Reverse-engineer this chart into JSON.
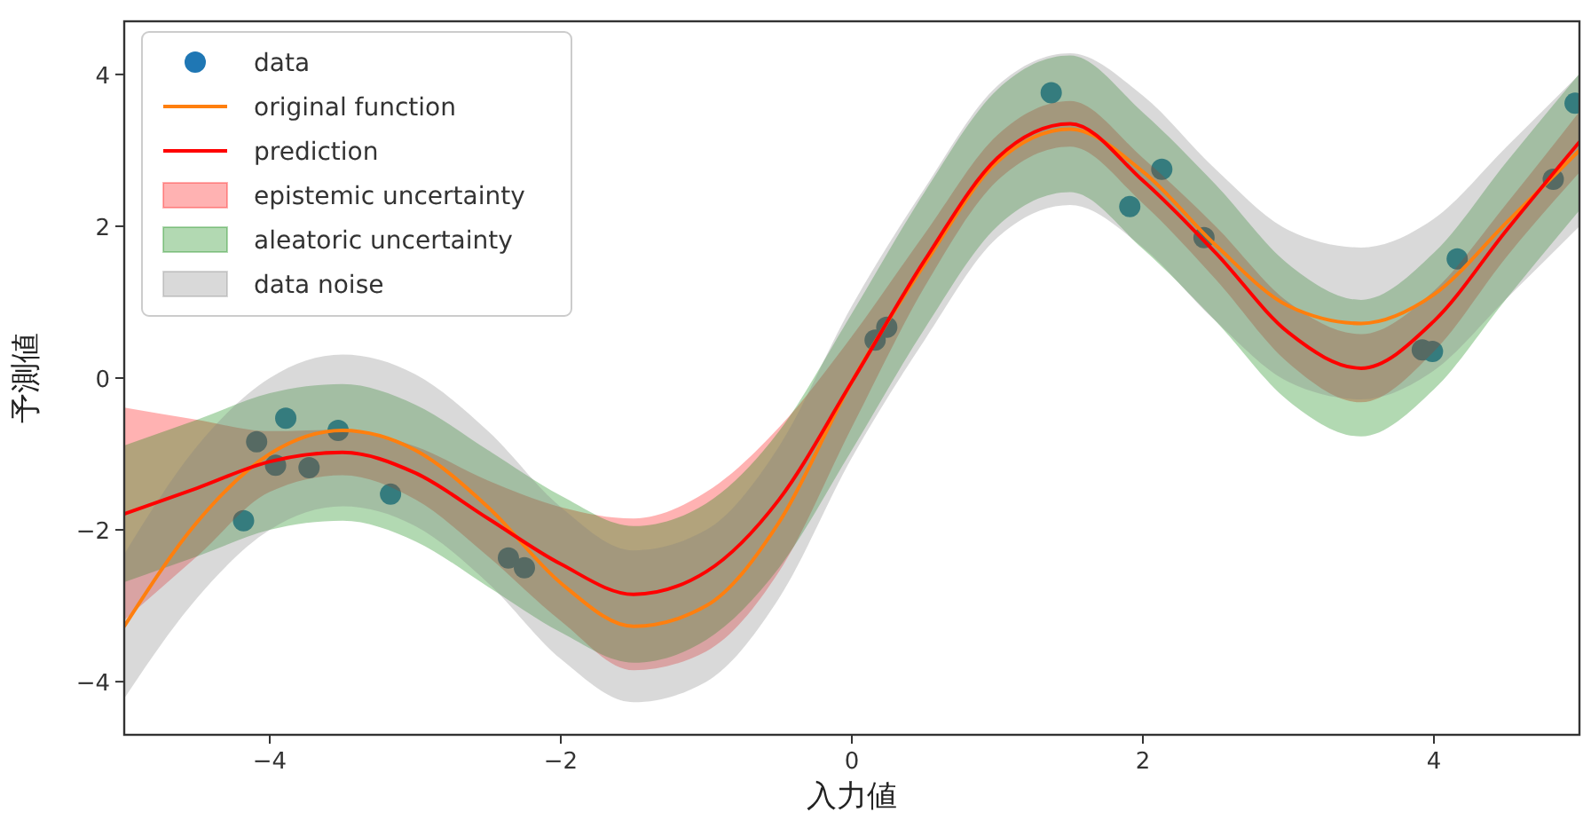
{
  "chart_data": {
    "type": "line",
    "xlabel": "入力値",
    "ylabel": "予測値",
    "xlim": [
      -5,
      5
    ],
    "ylim": [
      -4.7,
      4.7
    ],
    "xticks": [
      {
        "value": -4,
        "label": "−4"
      },
      {
        "value": -2,
        "label": "−2"
      },
      0,
      2,
      4
    ],
    "yticks": [
      {
        "value": -4,
        "label": "−4"
      },
      {
        "value": -2,
        "label": "−2"
      },
      0,
      2,
      4
    ],
    "grid": false,
    "legend": "top left",
    "x": [
      -5,
      -4.5,
      -4,
      -3.5,
      -3,
      -2.5,
      -2,
      -1.5,
      -1,
      -0.5,
      0,
      0.5,
      1,
      1.5,
      2,
      2.5,
      3,
      3.5,
      4,
      4.5,
      5
    ],
    "series": [
      {
        "name": "data",
        "type": "scatter",
        "marker": "circle",
        "color": "#1f77b4",
        "x": [
          -4.18,
          -4.09,
          -3.89,
          -3.96,
          -3.73,
          -3.53,
          -3.17,
          -2.36,
          -2.25,
          0.16,
          0.24,
          1.37,
          1.91,
          2.13,
          2.42,
          3.92,
          3.99,
          4.16,
          4.82,
          4.97
        ],
        "values": [
          -1.88,
          -0.84,
          -0.53,
          -1.15,
          -1.18,
          -0.69,
          -1.53,
          -2.37,
          -2.5,
          0.5,
          0.67,
          3.76,
          2.26,
          2.75,
          1.85,
          0.37,
          0.35,
          1.57,
          2.62,
          3.62
        ]
      },
      {
        "name": "original function",
        "color": "#ff7f0e",
        "values": [
          -3.27,
          -1.9,
          -1.0,
          -0.69,
          -0.95,
          -1.7,
          -2.7,
          -3.27,
          -3.0,
          -1.9,
          -0.05,
          1.5,
          2.85,
          3.28,
          2.72,
          1.75,
          0.95,
          0.72,
          1.1,
          2.05,
          3.0
        ]
      },
      {
        "name": "prediction",
        "color": "#ff0000",
        "values": [
          -1.79,
          -1.45,
          -1.1,
          -0.98,
          -1.25,
          -1.85,
          -2.45,
          -2.85,
          -2.55,
          -1.6,
          -0.05,
          1.55,
          2.9,
          3.35,
          2.6,
          1.65,
          0.6,
          0.13,
          0.75,
          1.95,
          3.11
        ]
      },
      {
        "name": "epistemic uncertainty",
        "type": "area",
        "color": "#ff0000",
        "values": [
          null,
          null,
          null,
          null,
          null,
          null,
          null,
          null,
          null,
          null,
          null,
          null,
          null,
          null,
          null,
          null,
          null,
          null,
          null,
          null,
          null
        ],
        "upper": [
          -0.39,
          -0.55,
          -0.7,
          -0.68,
          -0.9,
          -1.35,
          -1.7,
          -1.85,
          -1.5,
          -0.65,
          0.55,
          1.9,
          3.2,
          3.65,
          2.9,
          2.0,
          1.0,
          0.58,
          1.15,
          2.3,
          3.51
        ],
        "lower": [
          -3.19,
          -2.35,
          -1.5,
          -1.28,
          -1.6,
          -2.35,
          -3.2,
          -3.85,
          -3.6,
          -2.55,
          -0.65,
          1.2,
          2.6,
          3.05,
          2.3,
          1.3,
          0.2,
          -0.32,
          0.35,
          1.6,
          2.71
        ]
      },
      {
        "name": "aleatoric uncertainty",
        "type": "area",
        "color": "#008000",
        "values": [
          null,
          null,
          null,
          null,
          null,
          null,
          null,
          null,
          null,
          null,
          null,
          null,
          null,
          null,
          null,
          null,
          null,
          null,
          null,
          null,
          null
        ],
        "upper": [
          -0.89,
          -0.55,
          -0.2,
          -0.08,
          -0.35,
          -0.95,
          -1.55,
          -1.95,
          -1.65,
          -0.7,
          0.85,
          2.45,
          3.8,
          4.25,
          3.5,
          2.55,
          1.5,
          1.03,
          1.65,
          2.85,
          4.01
        ],
        "lower": [
          -2.69,
          -2.35,
          -2.0,
          -1.88,
          -2.15,
          -2.75,
          -3.35,
          -3.75,
          -3.45,
          -2.5,
          -0.95,
          0.65,
          2.0,
          2.45,
          1.7,
          0.75,
          -0.3,
          -0.77,
          -0.15,
          1.05,
          2.21
        ]
      },
      {
        "name": "data noise",
        "type": "area",
        "color": "#808080",
        "values": [
          null,
          null,
          null,
          null,
          null,
          null,
          null,
          null,
          null,
          null,
          null,
          null,
          null,
          null,
          null,
          null,
          null,
          null,
          null,
          null,
          null
        ],
        "upper": [
          -2.32,
          -0.9,
          0.0,
          0.31,
          0.05,
          -0.7,
          -1.7,
          -2.27,
          -2.0,
          -0.9,
          0.95,
          2.5,
          3.85,
          4.28,
          3.72,
          2.75,
          1.95,
          1.72,
          2.1,
          3.05,
          4.0
        ],
        "lower": [
          -4.22,
          -2.9,
          -2.0,
          -1.69,
          -1.95,
          -2.7,
          -3.7,
          -4.27,
          -4.0,
          -2.9,
          -1.05,
          0.5,
          1.85,
          2.28,
          1.72,
          0.75,
          -0.05,
          -0.28,
          0.1,
          1.05,
          2.0
        ]
      }
    ]
  }
}
